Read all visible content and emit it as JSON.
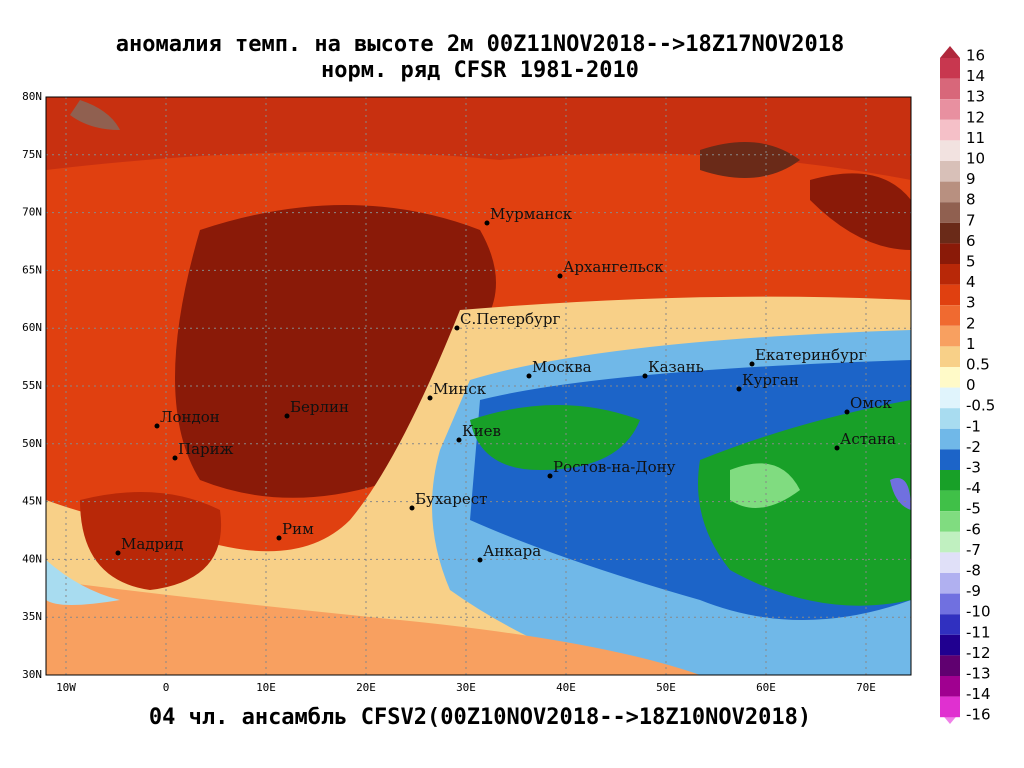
{
  "header": {
    "title": [
      "аномалия темп. на высоте 2м 00Z11NOV2018-->18Z17NOV2018",
      "норм. ряд CFSR 1981-2010"
    ]
  },
  "footer": "04 чл. ансамбль CFSV2(00Z10NOV2018-->18Z10NOV2018)",
  "lat_labels": [
    "80N",
    "75N",
    "70N",
    "65N",
    "60N",
    "55N",
    "50N",
    "45N",
    "40N",
    "35N",
    "30N"
  ],
  "lon_labels": [
    "10W",
    "0",
    "10E",
    "20E",
    "30E",
    "40E",
    "50E",
    "60E",
    "70E"
  ],
  "cities": [
    "Мурманск",
    "Архангельск",
    "С.Петербург",
    "Москва",
    "Казань",
    "Екатеринбург",
    "Курган",
    "Омск",
    "Астана",
    "Минск",
    "Киев",
    "Ростов-на-Дону",
    "Бухарест",
    "Анкара",
    "Берлин",
    "Лондон",
    "Париж",
    "Рим",
    "Мадрид"
  ],
  "colorbar": {
    "labels": [
      "16",
      "14",
      "13",
      "12",
      "11",
      "10",
      "9",
      "8",
      "7",
      "6",
      "5",
      "4",
      "3",
      "2",
      "1",
      "0.5",
      "0",
      "-0.5",
      "-1",
      "-2",
      "-3",
      "-4",
      "-5",
      "-6",
      "-7",
      "-8",
      "-9",
      "-10",
      "-11",
      "-12",
      "-13",
      "-14",
      "-16"
    ],
    "colors": [
      "#c8374f",
      "#d8677a",
      "#e890a0",
      "#f5c0c8",
      "#f2e2e0",
      "#d8c0b8",
      "#b89080",
      "#906050",
      "#6a2a18",
      "#8a1a08",
      "#b82808",
      "#e04010",
      "#f06a30",
      "#f8a060",
      "#f8d088",
      "#fffac8",
      "#e0f4fc",
      "#a8dcf0",
      "#70b8e8",
      "#1c64c8",
      "#18a028",
      "#40c048",
      "#80dc80",
      "#c0f0c0",
      "#e0e0f8",
      "#b0b0f0",
      "#7070e0",
      "#3030c0",
      "#200090",
      "#600070",
      "#a00090",
      "#e030d0"
    ]
  }
}
